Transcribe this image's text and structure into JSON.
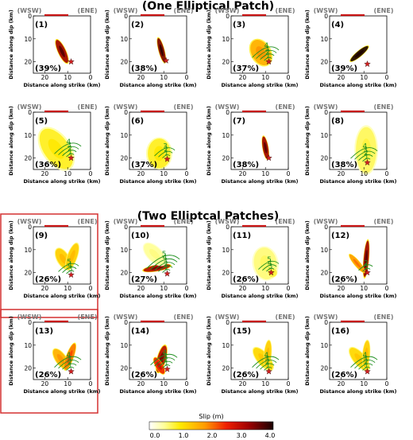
{
  "sections": [
    {
      "title": "(One Elliptical Patch)"
    },
    {
      "title": "(Two Elliptcal Patches)"
    }
  ],
  "chart_data": {
    "type": "heatmap",
    "xlabel": "Distance along strike (km)",
    "ylabel": "Distance along dip (km)",
    "x_ticks": [
      "20",
      "10",
      "0"
    ],
    "y_ticks": [
      "0",
      "10",
      "20"
    ],
    "xlim": [
      25,
      0
    ],
    "ylim": [
      0,
      25
    ],
    "direction_labels": {
      "left": "(WSW)",
      "right": "(ENE)"
    },
    "colorbar": {
      "label": "Slip (m)",
      "ticks": [
        "0.0",
        "1.0",
        "2.0",
        "3.0",
        "4.0"
      ],
      "range": [
        0,
        4
      ]
    },
    "panels": [
      {
        "label": "(1)",
        "percent": "(39%)",
        "group": "one",
        "highlight": false,
        "contours": [],
        "patches": [
          {
            "cx": 12.5,
            "cy": 15.5,
            "rx": 1.6,
            "ry": 5.5,
            "angle": -25,
            "slip": 3.2
          }
        ],
        "hypocenter": [
          8.5,
          20
        ]
      },
      {
        "label": "(2)",
        "percent": "(38%)",
        "group": "one",
        "highlight": false,
        "contours": [],
        "patches": [
          {
            "cx": 11,
            "cy": 15,
            "rx": 1.2,
            "ry": 5.5,
            "angle": -15,
            "slip": 3.4
          }
        ],
        "hypocenter": [
          9,
          19.5
        ]
      },
      {
        "label": "(3)",
        "percent": "(37%)",
        "group": "one",
        "highlight": false,
        "contours": [
          "1",
          "2",
          "3",
          "4"
        ],
        "patches": [
          {
            "cx": 12,
            "cy": 16,
            "rx": 4,
            "ry": 6,
            "angle": -30,
            "slip": 1.6
          }
        ],
        "hypocenter": [
          8.5,
          20
        ]
      },
      {
        "label": "(4)",
        "percent": "(39%)",
        "group": "one",
        "highlight": false,
        "contours": [],
        "patches": [
          {
            "cx": 12,
            "cy": 16.5,
            "rx": 1.2,
            "ry": 5,
            "angle": 50,
            "slip": 4.0
          }
        ],
        "hypocenter": [
          8.5,
          21
        ]
      },
      {
        "label": "(5)",
        "percent": "(36%)",
        "group": "one",
        "highlight": false,
        "contours": [
          "1",
          "2",
          "3",
          "4"
        ],
        "patches": [
          {
            "cx": 15,
            "cy": 16,
            "rx": 5.5,
            "ry": 10,
            "angle": -35,
            "slip": 0.9
          }
        ],
        "hypocenter": [
          8.5,
          20
        ]
      },
      {
        "label": "(6)",
        "percent": "(37%)",
        "group": "one",
        "highlight": false,
        "contours": [
          "1",
          "2",
          "3"
        ],
        "patches": [
          {
            "cx": 12,
            "cy": 18,
            "rx": 5,
            "ry": 6.5,
            "angle": 0,
            "slip": 0.9
          }
        ],
        "hypocenter": [
          8.5,
          20.5
        ]
      },
      {
        "label": "(7)",
        "percent": "(38%)",
        "group": "one",
        "highlight": false,
        "contours": [],
        "patches": [
          {
            "cx": 10,
            "cy": 15.5,
            "rx": 1.2,
            "ry": 5,
            "angle": -10,
            "slip": 3.2
          }
        ],
        "hypocenter": [
          8.5,
          20
        ]
      },
      {
        "label": "(8)",
        "percent": "(38%)",
        "group": "one",
        "highlight": false,
        "contours": [
          "1",
          "2",
          "3",
          "4"
        ],
        "patches": [
          {
            "cx": 9,
            "cy": 16.5,
            "rx": 4.5,
            "ry": 10,
            "angle": 0,
            "slip": 0.7
          }
        ],
        "hypocenter": [
          8.5,
          22
        ]
      },
      {
        "label": "(9)",
        "percent": "(26%)",
        "group": "two",
        "highlight": true,
        "contours": [
          "3",
          "4",
          "5"
        ],
        "patches": [
          {
            "cx": 12,
            "cy": 14,
            "rx": 2.5,
            "ry": 5,
            "angle": -30,
            "slip": 1.3
          },
          {
            "cx": 8,
            "cy": 13,
            "rx": 2,
            "ry": 6,
            "angle": 20,
            "slip": 1.3
          }
        ],
        "hypocenter": [
          8.5,
          21
        ]
      },
      {
        "label": "(10)",
        "percent": "(27%)",
        "group": "two",
        "highlight": false,
        "contours": [
          "1",
          "2",
          "3",
          "4",
          "5"
        ],
        "patches": [
          {
            "cx": 13,
            "cy": 18,
            "rx": 1.3,
            "ry": 6,
            "angle": 80,
            "slip": 3.0
          },
          {
            "cx": 14,
            "cy": 12,
            "rx": 3,
            "ry": 6,
            "angle": -45,
            "slip": 0.5
          }
        ],
        "hypocenter": [
          8.5,
          20.5
        ]
      },
      {
        "label": "(11)",
        "percent": "(26%)",
        "group": "two",
        "highlight": false,
        "contours": [
          "3",
          "4",
          "5"
        ],
        "patches": [
          {
            "cx": 10,
            "cy": 16,
            "rx": 5,
            "ry": 7,
            "angle": -10,
            "slip": 0.6
          },
          {
            "cx": 7,
            "cy": 20,
            "rx": 2,
            "ry": 2,
            "angle": 0,
            "slip": 0.8
          }
        ],
        "hypocenter": [
          7.5,
          20
        ]
      },
      {
        "label": "(12)",
        "percent": "(26%)",
        "group": "two",
        "highlight": false,
        "contours": [
          "1",
          "2"
        ],
        "patches": [
          {
            "cx": 9,
            "cy": 14,
            "rx": 1.1,
            "ry": 8,
            "angle": 5,
            "slip": 3.2
          },
          {
            "cx": 13,
            "cy": 16,
            "rx": 1.2,
            "ry": 5,
            "angle": -40,
            "slip": 1.8
          }
        ],
        "hypocenter": [
          8.5,
          20
        ]
      },
      {
        "label": "(13)",
        "percent": "(26%)",
        "group": "two",
        "highlight": true,
        "contours": [
          "1",
          "2",
          "3",
          "4"
        ],
        "patches": [
          {
            "cx": 13,
            "cy": 16,
            "rx": 2.2,
            "ry": 5,
            "angle": -35,
            "slip": 1.6
          },
          {
            "cx": 9,
            "cy": 15,
            "rx": 1.5,
            "ry": 6,
            "angle": 20,
            "slip": 2.0
          }
        ],
        "hypocenter": [
          8.5,
          21.5
        ]
      },
      {
        "label": "(14)",
        "percent": "(26%)",
        "group": "two",
        "highlight": false,
        "contours": [
          "1",
          "2",
          "3",
          "4"
        ],
        "patches": [
          {
            "cx": 11,
            "cy": 16,
            "rx": 1.8,
            "ry": 6,
            "angle": 15,
            "slip": 3.0
          },
          {
            "cx": 12,
            "cy": 19,
            "rx": 1.5,
            "ry": 4,
            "angle": -30,
            "slip": 2.5
          }
        ],
        "hypocenter": [
          8.5,
          20.5
        ]
      },
      {
        "label": "(15)",
        "percent": "(26%)",
        "group": "two",
        "highlight": false,
        "contours": [
          "1",
          "2",
          "3",
          "4"
        ],
        "patches": [
          {
            "cx": 11,
            "cy": 16,
            "rx": 2.5,
            "ry": 6,
            "angle": -40,
            "slip": 1.2
          },
          {
            "cx": 9,
            "cy": 14,
            "rx": 1.5,
            "ry": 6,
            "angle": 5,
            "slip": 1.3
          }
        ],
        "hypocenter": [
          8.5,
          21.5
        ]
      },
      {
        "label": "(16)",
        "percent": "(26%)",
        "group": "two",
        "highlight": false,
        "contours": [
          "1",
          "2",
          "3",
          "4"
        ],
        "patches": [
          {
            "cx": 12,
            "cy": 16,
            "rx": 2.5,
            "ry": 6,
            "angle": -40,
            "slip": 1.2
          },
          {
            "cx": 9,
            "cy": 14,
            "rx": 1.5,
            "ry": 6,
            "angle": 5,
            "slip": 1.3
          }
        ],
        "hypocenter": [
          8.5,
          21.5
        ]
      }
    ]
  }
}
